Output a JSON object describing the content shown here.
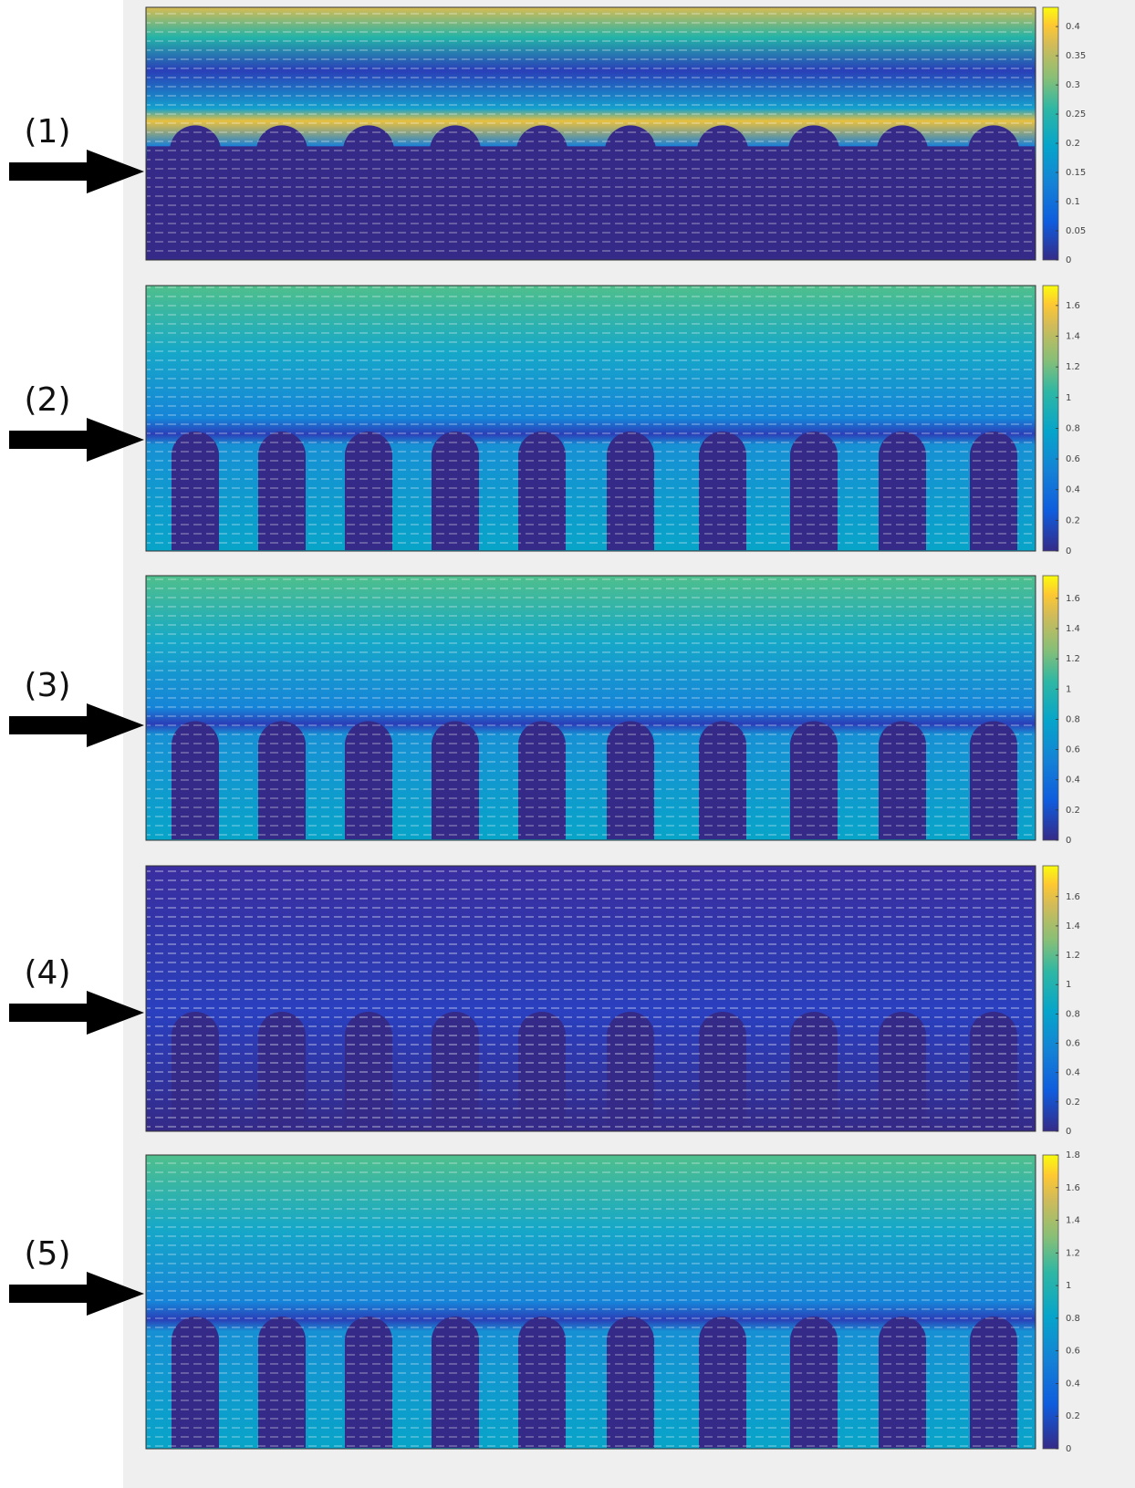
{
  "panels": [
    {
      "label": "(1)",
      "colorbar": {
        "lim": [
          0,
          0.433
        ],
        "ticks": [
          0,
          0.05,
          0.1,
          0.15,
          0.2,
          0.25,
          0.3,
          0.35,
          0.4
        ]
      }
    },
    {
      "label": "(2)",
      "colorbar": {
        "lim": [
          0,
          1.73
        ],
        "ticks": [
          0,
          0.2,
          0.4,
          0.6,
          0.8,
          1,
          1.2,
          1.4,
          1.6
        ]
      }
    },
    {
      "label": "(3)",
      "colorbar": {
        "lim": [
          0,
          1.75
        ],
        "ticks": [
          0,
          0.2,
          0.4,
          0.6,
          0.8,
          1,
          1.2,
          1.4,
          1.6
        ]
      }
    },
    {
      "label": "(4)",
      "colorbar": {
        "lim": [
          0,
          1.81
        ],
        "ticks": [
          0,
          0.2,
          0.4,
          0.6,
          0.8,
          1,
          1.2,
          1.4,
          1.6
        ]
      }
    },
    {
      "label": "(5)",
      "colorbar": {
        "lim": [
          0,
          1.8
        ],
        "ticks": [
          0,
          0.2,
          0.4,
          0.6,
          0.8,
          1,
          1.2,
          1.4,
          1.6,
          1.8
        ]
      }
    }
  ]
}
